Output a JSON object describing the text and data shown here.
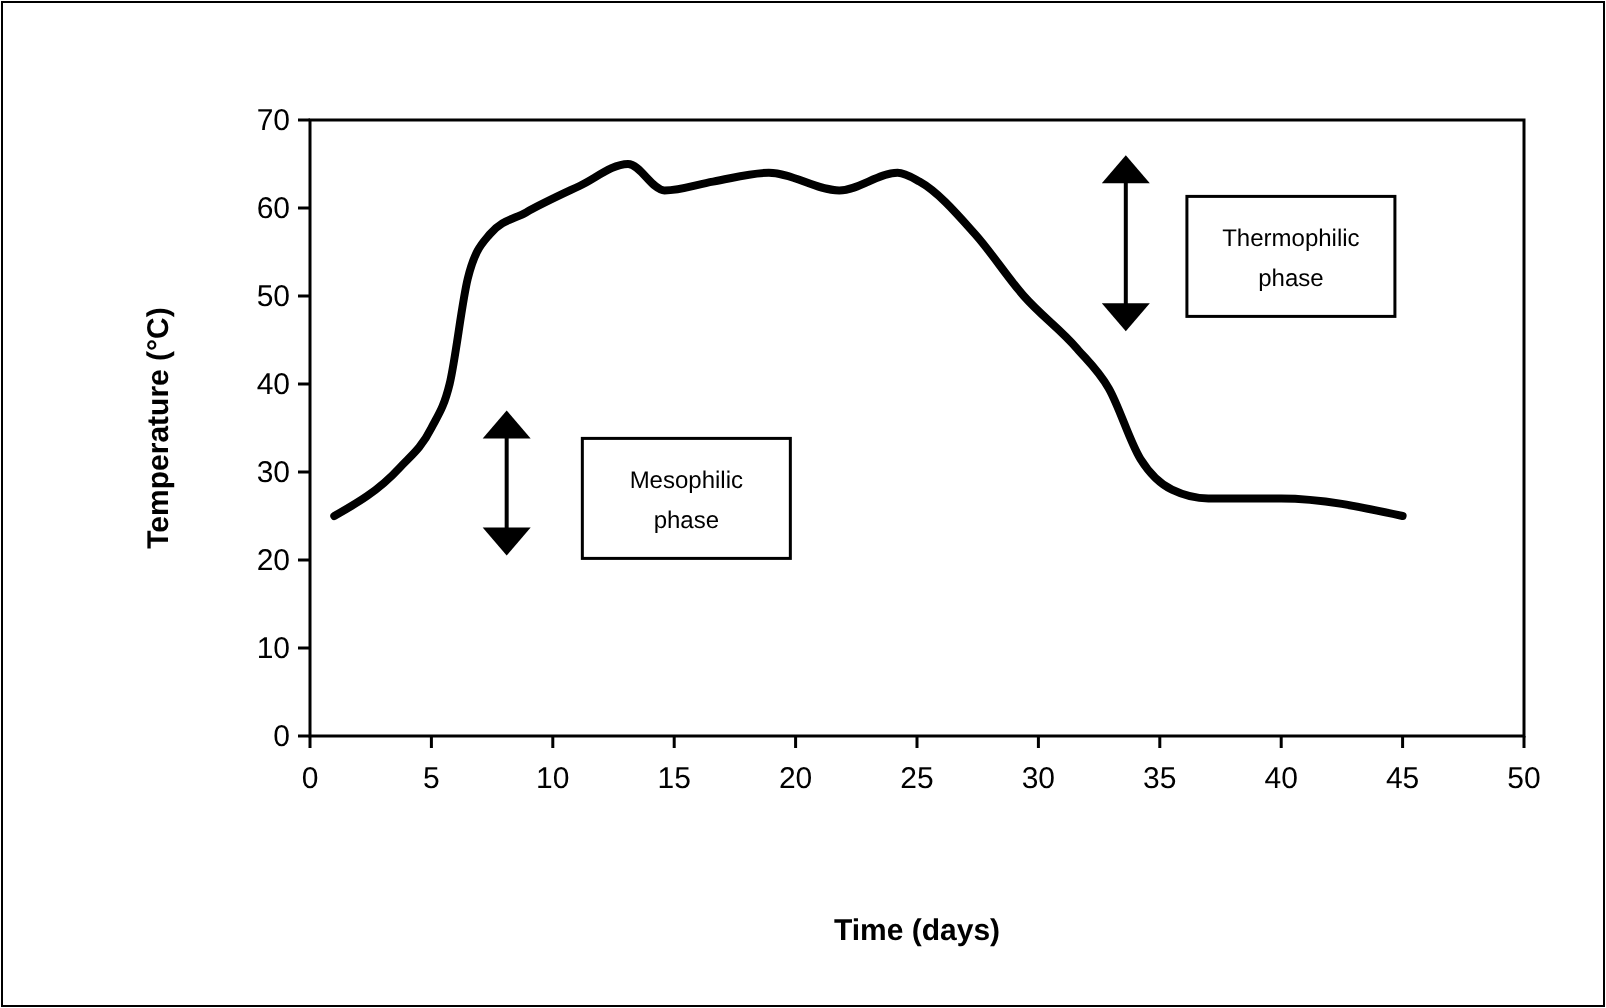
{
  "chart_data": {
    "type": "line",
    "xlabel": "Time (days)",
    "ylabel": "Temperature (°C)",
    "x": [
      1,
      3.7,
      5,
      5.75,
      6.5,
      7.4,
      8.9,
      11.1,
      13.1,
      14.6,
      16.6,
      18.9,
      21.8,
      24.2,
      25.1,
      27.4,
      29.4,
      31.6,
      32.9,
      34.2,
      35.5,
      37,
      40,
      45
    ],
    "series": [
      {
        "color": "#000000",
        "values": [
          25,
          30.5,
          35,
          40,
          52,
          57,
          59.5,
          62.5,
          65,
          62,
          63,
          64,
          62,
          64,
          63,
          57,
          50,
          44,
          39.5,
          31.5,
          28,
          27,
          27,
          25
        ]
      }
    ],
    "xlim": [
      0,
      50
    ],
    "xticks": [
      0,
      5,
      10,
      15,
      20,
      25,
      30,
      35,
      40,
      45,
      50
    ],
    "ylim": [
      0,
      70
    ],
    "yticks": [
      0,
      10,
      20,
      30,
      40,
      50,
      60,
      70
    ],
    "grid": false,
    "marker": "none",
    "line_style": "solid",
    "annotations": [
      "Mesophilic phase",
      "Thermophilic phase"
    ]
  }
}
